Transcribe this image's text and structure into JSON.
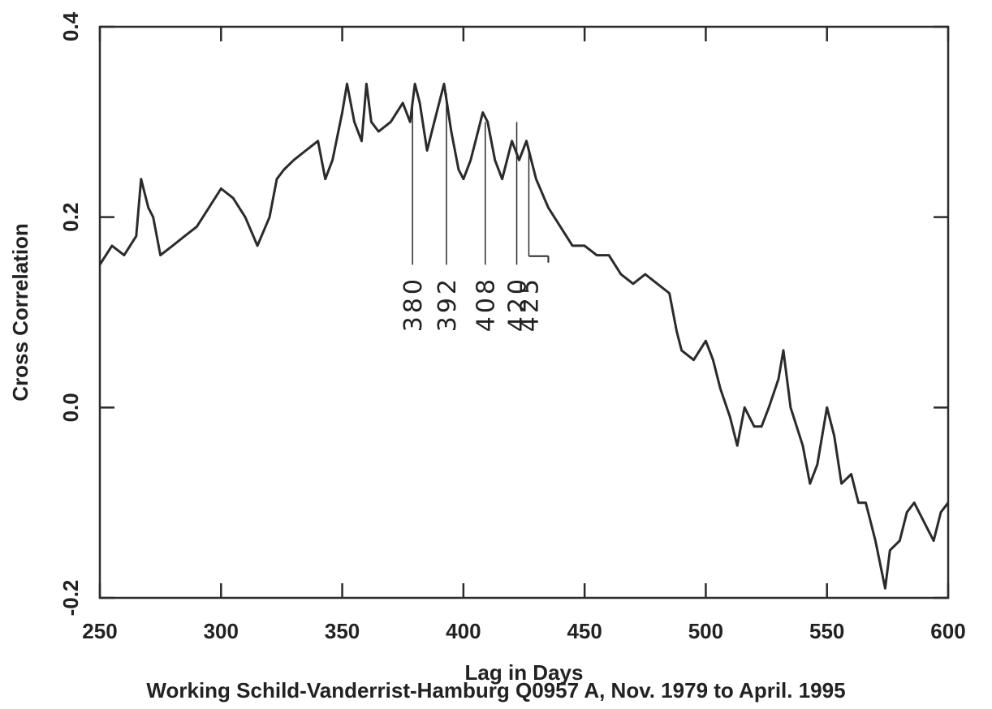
{
  "chart_data": {
    "type": "line",
    "title": "Working Schild-Vanderrist-Hamburg Q0957 A, Nov. 1979 to April. 1995",
    "xlabel": "Lag in Days",
    "ylabel": "Cross Correlation",
    "xlim": [
      250,
      600
    ],
    "ylim": [
      -0.2,
      0.4
    ],
    "xticks": [
      "250",
      "300",
      "350",
      "400",
      "450",
      "500",
      "550",
      "600"
    ],
    "yticks": [
      "-0.2",
      "0.0",
      "0.2",
      "0.4"
    ],
    "grid": false,
    "series": [
      {
        "x": [
          250,
          255,
          260,
          265,
          267,
          270,
          272,
          275,
          280,
          285,
          290,
          295,
          300,
          305,
          310,
          315,
          320,
          323,
          326,
          330,
          335,
          340,
          343,
          346,
          350,
          352,
          355,
          358,
          360,
          362,
          365,
          370,
          375,
          378,
          380,
          382,
          385,
          388,
          392,
          395,
          398,
          400,
          403,
          406,
          408,
          410,
          413,
          416,
          420,
          423,
          426,
          430,
          435,
          440,
          445,
          450,
          455,
          460,
          465,
          470,
          475,
          480,
          485,
          488,
          490,
          495,
          500,
          503,
          506,
          510,
          513,
          516,
          520,
          523,
          526,
          530,
          532,
          535,
          540,
          543,
          546,
          550,
          553,
          556,
          560,
          563,
          566,
          570,
          574,
          576,
          580,
          583,
          586,
          590,
          594,
          597,
          600
        ],
        "y": [
          0.15,
          0.17,
          0.16,
          0.18,
          0.24,
          0.21,
          0.2,
          0.16,
          0.17,
          0.18,
          0.19,
          0.21,
          0.23,
          0.22,
          0.2,
          0.17,
          0.2,
          0.24,
          0.25,
          0.26,
          0.27,
          0.28,
          0.24,
          0.26,
          0.31,
          0.34,
          0.3,
          0.28,
          0.34,
          0.3,
          0.29,
          0.3,
          0.32,
          0.3,
          0.34,
          0.32,
          0.27,
          0.3,
          0.34,
          0.29,
          0.25,
          0.24,
          0.26,
          0.29,
          0.31,
          0.3,
          0.26,
          0.24,
          0.28,
          0.26,
          0.28,
          0.24,
          0.21,
          0.19,
          0.17,
          0.17,
          0.16,
          0.16,
          0.14,
          0.13,
          0.14,
          0.13,
          0.12,
          0.08,
          0.06,
          0.05,
          0.07,
          0.05,
          0.02,
          -0.01,
          -0.04,
          0.0,
          -0.02,
          -0.02,
          0.0,
          0.03,
          0.06,
          0.0,
          -0.04,
          -0.08,
          -0.06,
          0.0,
          -0.03,
          -0.08,
          -0.07,
          -0.1,
          -0.1,
          -0.14,
          -0.19,
          -0.15,
          -0.14,
          -0.11,
          -0.1,
          -0.12,
          -0.14,
          -0.11,
          -0.1
        ]
      }
    ],
    "annotations": [
      {
        "label": "380",
        "x": 379,
        "y_top": 0.32,
        "y_bottom": 0.15
      },
      {
        "label": "392",
        "x": 393,
        "y_top": 0.33,
        "y_bottom": 0.15
      },
      {
        "label": "408",
        "x": 409,
        "y_top": 0.3,
        "y_bottom": 0.15
      },
      {
        "label": "420",
        "x": 422,
        "y_top": 0.3,
        "y_bottom": 0.15
      },
      {
        "label": "425",
        "x": 427,
        "y_top": 0.27,
        "y_bottom": 0.159
      }
    ],
    "line_color": "#2b2b2b"
  }
}
